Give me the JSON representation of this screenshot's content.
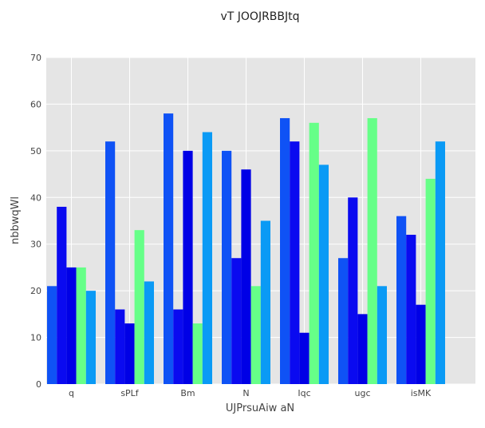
{
  "chart_data": {
    "type": "bar",
    "title": "vT JOOJRBBJtq",
    "xlabel": "UJPrsuAiw aN",
    "ylabel": "nbbwqWl",
    "categories": [
      "q",
      "sPLf",
      "Bm",
      "N",
      "Iqc",
      "ugc",
      "isMK"
    ],
    "ylim": [
      0,
      70
    ],
    "yticks": [
      0,
      10,
      20,
      30,
      40,
      50,
      60,
      70
    ],
    "grid": true,
    "series": [
      {
        "color": "#0f52f5",
        "values": [
          21,
          52,
          58,
          50,
          57,
          27,
          36
        ]
      },
      {
        "color": "#0a0af0",
        "values": [
          38,
          16,
          16,
          27,
          52,
          40,
          32
        ]
      },
      {
        "color": "#0000e6",
        "values": [
          25,
          13,
          50,
          46,
          11,
          15,
          17
        ]
      },
      {
        "color": "#66ff88",
        "values": [
          25,
          33,
          13,
          21,
          56,
          57,
          44
        ]
      },
      {
        "color": "#0a9af5",
        "values": [
          20,
          22,
          54,
          35,
          47,
          21,
          52
        ]
      }
    ]
  }
}
